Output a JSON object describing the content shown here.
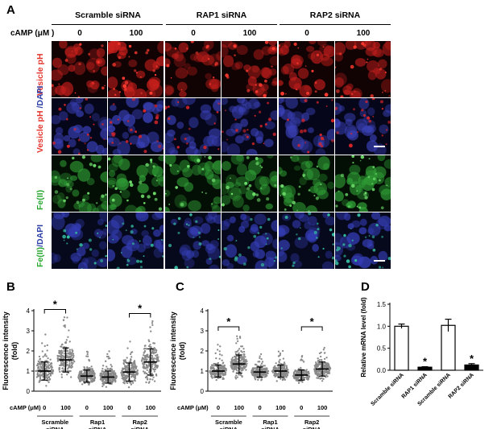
{
  "panel_labels": {
    "a": "A",
    "b": "B",
    "c": "C",
    "d": "D"
  },
  "microscopy": {
    "group_headers": [
      "Scramble siRNA",
      "RAP1 siRNA",
      "RAP2 siRNA"
    ],
    "camp_label": "cAMP (μM )",
    "doses": [
      "0",
      "100",
      "0",
      "100",
      "0",
      "100"
    ],
    "rows": [
      {
        "parts": [
          {
            "text": "Vesicle pH",
            "color": "red"
          }
        ],
        "base": "#110203",
        "cell": "#c9201d",
        "accent": "#ff3b30",
        "density": [
          0.35,
          0.65,
          0.3,
          0.3,
          0.35,
          0.45
        ]
      },
      {
        "parts": [
          {
            "text": "Vesicle pH",
            "color": "red"
          },
          {
            "text": " /DAPI",
            "color": "blue"
          }
        ],
        "base": "#06061a",
        "cell": "#3a41b8",
        "accent": "#d6262a",
        "density": [
          0.5,
          0.7,
          0.4,
          0.45,
          0.45,
          0.5
        ]
      },
      {
        "parts": [
          {
            "text": "Fe(II)",
            "color": "green"
          }
        ],
        "base": "#030e04",
        "cell": "#2f9c35",
        "accent": "#6fe06c",
        "density": [
          0.45,
          0.6,
          0.35,
          0.45,
          0.45,
          0.75
        ]
      },
      {
        "parts": [
          {
            "text": "Fe(II)",
            "color": "green"
          },
          {
            "text": "/DAPI",
            "color": "blue"
          }
        ],
        "base": "#06081c",
        "cell": "#343db4",
        "accent": "#34b9a0",
        "density": [
          0.5,
          0.6,
          0.45,
          0.5,
          0.5,
          0.7
        ]
      }
    ]
  },
  "scatter_y_label": [
    "Fluorescence intensity",
    "(fold)"
  ],
  "scatter_camp_label": "cAMP (μM)",
  "scatter_groups": [
    "Scramble siRNA",
    "Rap1 siRNA",
    "Rap2 siRNA"
  ],
  "chart_data": [
    {
      "type": "scatter",
      "panel": "B",
      "ylabel": "Fluorescence intensity (fold)",
      "ylim": [
        0,
        4
      ],
      "yticks": [
        0,
        1,
        2,
        3,
        4
      ],
      "categories": [
        "0",
        "100",
        "0",
        "100",
        "0",
        "100"
      ],
      "groups": [
        "Scramble siRNA",
        "Rap1 siRNA",
        "Rap2 siRNA"
      ],
      "mean": [
        1.0,
        1.55,
        0.75,
        0.7,
        0.95,
        1.45
      ],
      "sd": [
        0.45,
        0.6,
        0.3,
        0.3,
        0.45,
        0.65
      ],
      "max": [
        2.9,
        3.9,
        2.1,
        2.0,
        2.6,
        3.7
      ],
      "significance": [
        {
          "between": [
            0,
            1
          ],
          "label": "*"
        },
        {
          "between": [
            4,
            5
          ],
          "label": "*"
        }
      ]
    },
    {
      "type": "scatter",
      "panel": "C",
      "ylabel": "Fluorescence intensity (fold)",
      "ylim": [
        0,
        4
      ],
      "yticks": [
        0,
        1,
        2,
        3,
        4
      ],
      "categories": [
        "0",
        "100",
        "0",
        "100",
        "0",
        "100"
      ],
      "groups": [
        "Scramble siRNA",
        "Rap1 siRNA",
        "Rap2 siRNA"
      ],
      "mean": [
        1.0,
        1.35,
        0.95,
        1.0,
        0.8,
        1.1
      ],
      "sd": [
        0.3,
        0.45,
        0.25,
        0.3,
        0.25,
        0.35
      ],
      "max": [
        2.4,
        2.95,
        1.9,
        2.0,
        1.8,
        2.3
      ],
      "significance": [
        {
          "between": [
            0,
            1
          ],
          "label": "*"
        },
        {
          "between": [
            4,
            5
          ],
          "label": "*"
        }
      ]
    },
    {
      "type": "bar",
      "panel": "D",
      "ylabel": "Relative mRNA level (fold)",
      "ylim": [
        0,
        1.5
      ],
      "yticks": [
        0.0,
        0.5,
        1.0,
        1.5
      ],
      "categories": [
        "Scramble siRNA",
        "RAP1 siRNA",
        "Scramble siRNA",
        "RAP2 siRNA"
      ],
      "values": [
        1.0,
        0.07,
        1.02,
        0.12
      ],
      "errors": [
        0.05,
        0.01,
        0.14,
        0.03
      ],
      "fills": [
        "#ffffff",
        "#000000",
        "#ffffff",
        "#000000"
      ],
      "significance": [
        "",
        "*",
        "",
        "*"
      ]
    }
  ]
}
